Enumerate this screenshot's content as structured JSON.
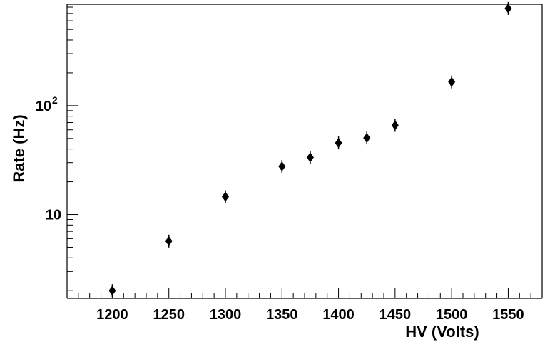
{
  "chart_data": {
    "type": "scatter",
    "xlabel": "HV (Volts)",
    "ylabel": "Rate (Hz)",
    "xlim": [
      1160,
      1580
    ],
    "ylim": [
      1.7,
      850
    ],
    "y_scale": "log",
    "x_ticks": [
      1200,
      1250,
      1300,
      1350,
      1400,
      1450,
      1500,
      1550
    ],
    "y_ticks": [
      {
        "value": 10,
        "base": "10",
        "exp": ""
      },
      {
        "value": 100,
        "base": "10",
        "exp": "2"
      }
    ],
    "grid": false,
    "legend": "none",
    "points": [
      {
        "x": 1200,
        "y": 2.0,
        "err": 0.2
      },
      {
        "x": 1250,
        "y": 5.7,
        "err": 0.4
      },
      {
        "x": 1300,
        "y": 14.6,
        "err": 1.0
      },
      {
        "x": 1350,
        "y": 27.7,
        "err": 1.8
      },
      {
        "x": 1375,
        "y": 33.5,
        "err": 2.0
      },
      {
        "x": 1400,
        "y": 45.5,
        "err": 3.0
      },
      {
        "x": 1425,
        "y": 50.5,
        "err": 3.0
      },
      {
        "x": 1450,
        "y": 66.0,
        "err": 4.0
      },
      {
        "x": 1500,
        "y": 165,
        "err": 12
      },
      {
        "x": 1550,
        "y": 778,
        "err": 50
      }
    ],
    "colors": {
      "marker": "#000000",
      "axis": "#000000"
    }
  }
}
